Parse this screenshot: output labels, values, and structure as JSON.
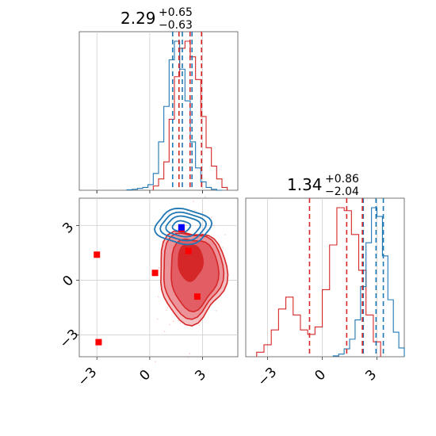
{
  "chart_data": {
    "type": "corner",
    "colors": {
      "series_a": "#1f77b4",
      "series_b": "#d62728"
    },
    "grid": true,
    "panels": [
      {
        "id": "hist-x",
        "type": "histogram",
        "title": {
          "value": "2.29",
          "plus": "+0.65",
          "minus": "−0.63"
        },
        "xlim": [
          -4,
          5
        ],
        "series_a_hist": {
          "bins": [
            -1.3,
            -1.0,
            -0.7,
            -0.4,
            -0.1,
            0.2,
            0.5,
            0.8,
            1.1,
            1.4,
            1.7,
            2.0,
            2.3,
            2.6,
            2.9,
            3.2,
            3.5,
            3.8,
            4.1
          ],
          "counts": [
            0.5,
            1,
            2,
            3,
            6,
            18,
            52,
            90,
            140,
            160,
            130,
            96,
            52,
            24,
            9,
            3,
            1,
            0
          ]
        },
        "series_a_lines": [
          1.3,
          1.85,
          2.4
        ],
        "series_b_hist": {
          "bins": [
            0.2,
            0.5,
            0.8,
            1.1,
            1.4,
            1.7,
            2.0,
            2.3,
            2.6,
            2.9,
            3.2,
            3.5,
            3.8,
            4.1,
            4.4
          ],
          "counts": [
            3,
            8,
            20,
            50,
            80,
            100,
            105,
            94,
            78,
            52,
            30,
            17,
            8,
            2
          ]
        },
        "series_b_lines": [
          1.66,
          2.29,
          2.94
        ]
      },
      {
        "id": "scatter-xy",
        "type": "2d",
        "xlim": [
          -4,
          5
        ],
        "ylim": [
          -4.2,
          4.5
        ],
        "xticks": [
          "−3",
          "0",
          "3"
        ],
        "yticks": [
          "−3",
          "0",
          "3"
        ],
        "markers": [
          {
            "color": "series_b",
            "x": -3.0,
            "y": 1.4
          },
          {
            "color": "series_b",
            "x": -2.9,
            "y": -3.4
          },
          {
            "color": "series_b",
            "x": 0.3,
            "y": 0.4
          },
          {
            "color": "series_b",
            "x": 2.2,
            "y": 1.6
          },
          {
            "color": "series_b",
            "x": 2.7,
            "y": -0.9
          },
          {
            "color": "series_b",
            "x": 1.8,
            "y": 2.8
          },
          {
            "color": "series_a",
            "x": 1.8,
            "y": 2.9
          }
        ]
      },
      {
        "id": "hist-y",
        "type": "histogram",
        "title": {
          "value": "1.34",
          "plus": "+0.86",
          "minus": "−2.04"
        },
        "xlim": [
          -4.2,
          4.5
        ],
        "xticks": [
          "−3",
          "0",
          "3"
        ],
        "series_a_hist": {
          "bins": [
            0.6,
            0.9,
            1.2,
            1.5,
            1.8,
            2.1,
            2.4,
            2.7,
            3.0,
            3.3,
            3.6,
            3.9,
            4.2,
            4.5
          ],
          "counts": [
            1,
            3,
            9,
            20,
            42,
            80,
            130,
            170,
            160,
            115,
            65,
            28,
            10
          ]
        },
        "series_a_lines": [
          2.25,
          2.95,
          3.35
        ],
        "series_b_hist": {
          "bins": [
            -3.6,
            -3.2,
            -2.8,
            -2.4,
            -2.0,
            -1.6,
            -1.2,
            -0.8,
            -0.4,
            0.0,
            0.4,
            0.8,
            1.2,
            1.6,
            2.0,
            2.4,
            2.8,
            3.2
          ],
          "counts": [
            3,
            8,
            18,
            32,
            40,
            28,
            18,
            15,
            20,
            45,
            75,
            100,
            98,
            82,
            58,
            28,
            10
          ]
        },
        "series_b_lines": [
          -0.7,
          1.34,
          2.2
        ]
      }
    ]
  }
}
